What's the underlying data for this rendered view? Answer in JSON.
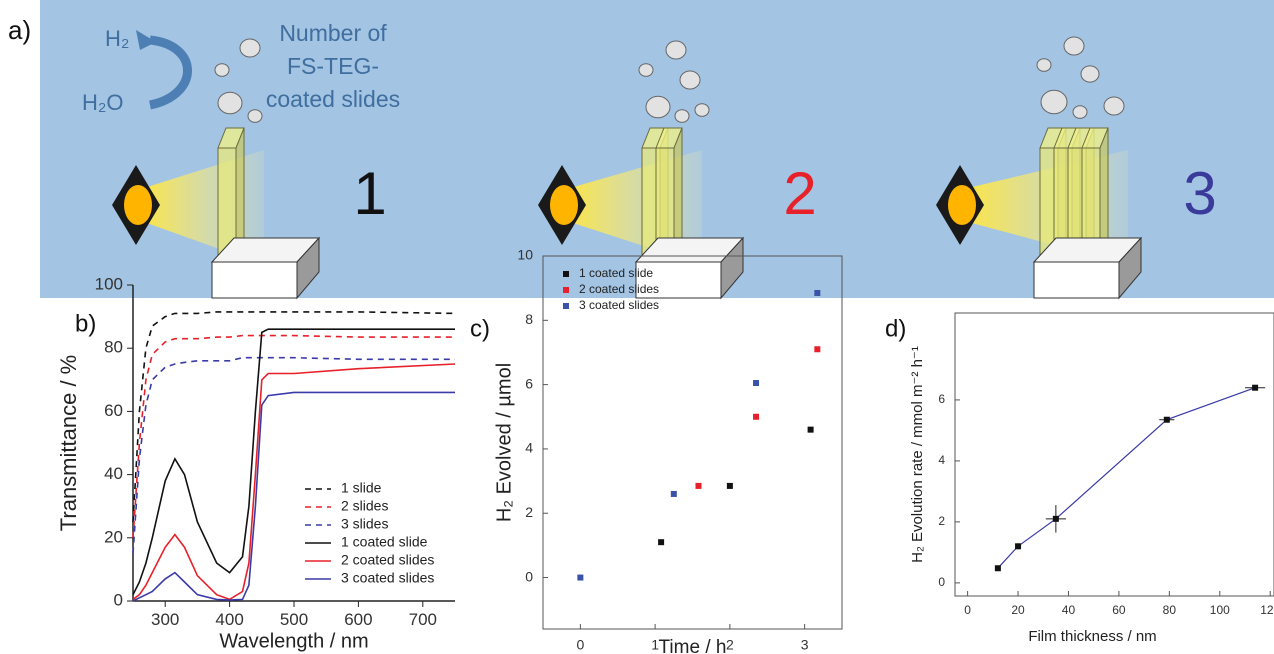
{
  "illustration": {
    "panel_label": "a)",
    "product": "H₂",
    "reactant": "H₂O",
    "caption_lines": [
      "Number of",
      "FS-TEG-",
      "coated slides"
    ],
    "counts": [
      "1",
      "2",
      "3"
    ],
    "count_colors": [
      "#111111",
      "#e8202a",
      "#3a3a9a"
    ]
  },
  "chart_data": [
    {
      "type": "line",
      "panel_label": "b)",
      "x_label": "Wavelength / nm",
      "y_label": "Transmittance / %",
      "xlim": [
        250,
        750
      ],
      "xticks": [
        300,
        400,
        500,
        600,
        700
      ],
      "ylim": [
        0,
        100
      ],
      "yticks": [
        0,
        20,
        40,
        60,
        80,
        100
      ],
      "frame": false,
      "legend": "lower right",
      "x": [
        250,
        260,
        270,
        280,
        300,
        315,
        330,
        350,
        380,
        400,
        420,
        430,
        440,
        450,
        460,
        500,
        600,
        750
      ],
      "series": [
        {
          "name": "1 slide",
          "color": "#111111",
          "dashed": true,
          "values": [
            25,
            60,
            80,
            87,
            90,
            91,
            91,
            91,
            91.5,
            91.5,
            91.5,
            91.5,
            91.5,
            91.5,
            91.5,
            91.5,
            91.5,
            91
          ]
        },
        {
          "name": "2 slides",
          "color": "#e8202a",
          "dashed": true,
          "values": [
            20,
            50,
            70,
            78,
            82,
            83,
            83,
            83,
            83.5,
            83.5,
            84,
            84,
            84,
            84,
            84,
            84,
            83.5,
            83.5
          ]
        },
        {
          "name": "3 slides",
          "color": "#3a3aa8",
          "dashed": true,
          "values": [
            15,
            45,
            62,
            70,
            74,
            75,
            75.5,
            76,
            76,
            76,
            77,
            77,
            77,
            77,
            77,
            77,
            76.5,
            76.5
          ]
        },
        {
          "name": "1 coated slide",
          "color": "#111111",
          "dashed": false,
          "values": [
            2,
            6,
            12,
            20,
            38,
            45,
            40,
            25,
            12,
            9,
            14,
            30,
            60,
            85,
            86,
            86,
            86,
            86
          ]
        },
        {
          "name": "2 coated slides",
          "color": "#e8202a",
          "dashed": false,
          "values": [
            0.5,
            2,
            5,
            9,
            17,
            21,
            17,
            8,
            2,
            0.5,
            3,
            12,
            40,
            70,
            72,
            72,
            73.5,
            75
          ]
        },
        {
          "name": "3 coated slides",
          "color": "#3a3aa8",
          "dashed": false,
          "values": [
            0,
            1,
            2,
            3,
            7,
            9,
            6,
            2,
            0.5,
            0.3,
            0.5,
            5,
            30,
            62,
            65,
            66,
            66,
            66
          ]
        }
      ]
    },
    {
      "type": "scatter",
      "panel_label": "c)",
      "x_label": "Time / h",
      "y_label": "H₂ Evolved / µmol",
      "xlim": [
        -0.5,
        3.5
      ],
      "xticks": [
        0,
        1,
        2,
        3
      ],
      "ylim": [
        -1.6,
        10
      ],
      "yticks": [
        0,
        2,
        4,
        6,
        8,
        10
      ],
      "frame": true,
      "legend": "upper left",
      "series": [
        {
          "name": "1 coated slide",
          "color": "#111111",
          "x": [
            1.08,
            2,
            3.08
          ],
          "values": [
            1.1,
            2.85,
            4.6
          ]
        },
        {
          "name": "2 coated slides",
          "color": "#e8202a",
          "x": [
            1.58,
            2.35,
            3.17
          ],
          "values": [
            2.85,
            5,
            7.1
          ]
        },
        {
          "name": "3 coated slides",
          "color": "#3a52a8",
          "x": [
            0,
            1.25,
            2.35,
            3.17
          ],
          "values": [
            0,
            2.6,
            6.05,
            8.85
          ]
        }
      ]
    },
    {
      "type": "line",
      "panel_label": "d)",
      "x_label": "Film thickness / nm",
      "y_label": "H₂ Evolution rate / mmol m⁻² h⁻¹",
      "xlim": [
        -5,
        121.5
      ],
      "xticks": [
        0,
        20,
        40,
        60,
        80,
        100,
        120
      ],
      "ylim": [
        -0.43,
        8.85
      ],
      "yticks": [
        0,
        2,
        4,
        6
      ],
      "frame": true,
      "color": "#3a3aa8",
      "markers": true,
      "x": [
        12,
        20,
        35,
        79,
        114
      ],
      "values": [
        0.48,
        1.2,
        2.1,
        5.35,
        6.4
      ],
      "xerr": [
        0.5,
        1,
        4,
        3,
        4
      ],
      "yerr": [
        0.05,
        0.1,
        0.45,
        0.05,
        0.03
      ]
    }
  ]
}
